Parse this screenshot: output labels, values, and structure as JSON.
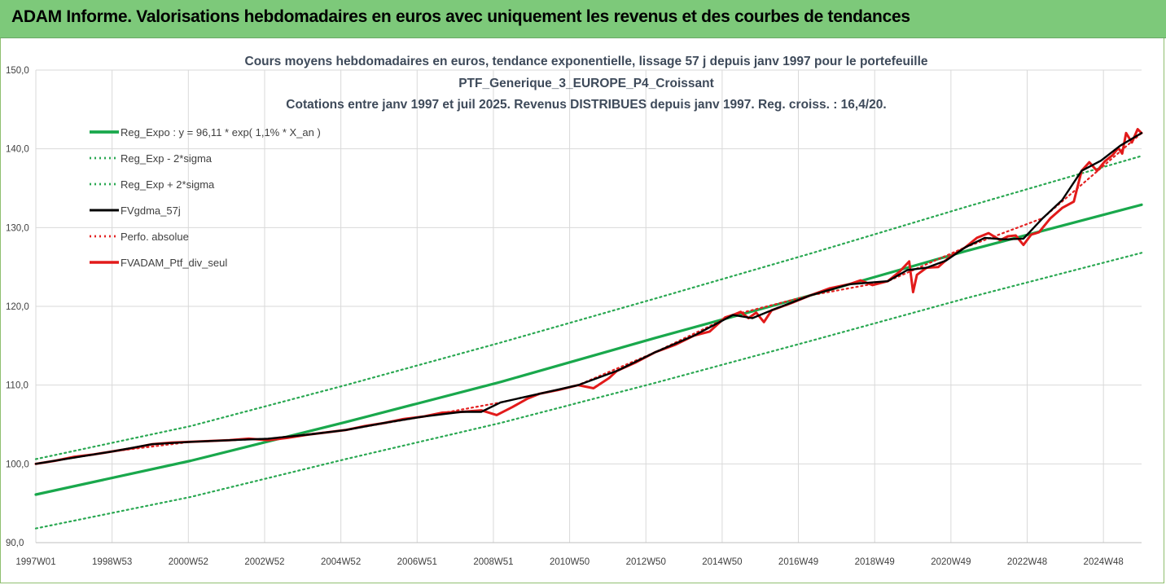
{
  "banner": {
    "title": "ADAM Informe. Valorisations hebdomadaires en euros avec uniquement les revenus et des courbes de tendances"
  },
  "colors": {
    "banner_bg": "#7dc97a",
    "trend": "#19a84c",
    "sigma": "#2aa852",
    "smooth": "#000000",
    "perf": "#e32222",
    "portfolio": "#e21a1a",
    "grid": "#d9d9d9"
  },
  "chart_data": {
    "type": "line",
    "title": [
      "Cours moyens hebdomadaires  en euros, tendance exponentielle, lissage 57 j depuis janv 1997 pour le portefeuille",
      "PTF_Generique_3_EUROPE_P4_Croissant",
      "Cotations  entre janv 1997 et juil 2025. Revenus DISTRIBUES depuis janv 1997. Reg. croiss. : 16,4/20."
    ],
    "xlabel": "",
    "ylabel": "",
    "ylim": [
      90,
      150
    ],
    "xlim": [
      1997.0,
      2025.55
    ],
    "y_ticks": [
      "90,0",
      "100,0",
      "110,0",
      "120,0",
      "130,0",
      "140,0",
      "150,0"
    ],
    "x_ticks": [
      "1997W01",
      "1998W53",
      "2000W52",
      "2002W52",
      "2004W52",
      "2006W51",
      "2008W51",
      "2010W50",
      "2012W50",
      "2014W50",
      "2016W49",
      "2018W49",
      "2020W49",
      "2022W48",
      "2024W48"
    ],
    "grid": true,
    "legend_position": "top-left",
    "series": [
      {
        "name": "Reg_Expo : y = 96,11 * exp( 1,1% *  X_an )",
        "style": "solid-thick",
        "x": [
          1997.0,
          2001.0,
          2005.0,
          2009.0,
          2013.0,
          2017.0,
          2021.0,
          2025.55
        ],
        "y": [
          96.1,
          100.4,
          105.3,
          110.4,
          116.0,
          121.4,
          127.0,
          132.9
        ]
      },
      {
        "name": "Reg_Exp - 2*sigma",
        "style": "dotted",
        "x": [
          1997.0,
          2001.0,
          2005.0,
          2009.0,
          2013.0,
          2017.0,
          2021.0,
          2025.55
        ],
        "y": [
          91.8,
          95.8,
          100.6,
          105.2,
          110.3,
          115.6,
          121.0,
          126.8
        ]
      },
      {
        "name": "Reg_Exp + 2*sigma",
        "style": "dotted",
        "x": [
          1997.0,
          2001.0,
          2005.0,
          2009.0,
          2013.0,
          2017.0,
          2021.0,
          2025.55
        ],
        "y": [
          100.6,
          104.8,
          110.0,
          115.4,
          121.0,
          126.7,
          132.6,
          139.1
        ]
      },
      {
        "name": "FVgdma_57j",
        "style": "solid",
        "x": [
          1997.0,
          1998.0,
          1999.0,
          2000.0,
          2001.0,
          2002.0,
          2003.0,
          2004.0,
          2005.0,
          2006.0,
          2007.0,
          2008.0,
          2008.5,
          2009.0,
          2010.0,
          2011.0,
          2012.0,
          2013.0,
          2014.0,
          2015.0,
          2015.5,
          2016.0,
          2017.0,
          2018.0,
          2019.0,
          2019.5,
          2020.0,
          2020.5,
          2021.0,
          2021.5,
          2022.0,
          2022.5,
          2023.0,
          2023.5,
          2024.0,
          2024.5,
          2025.0,
          2025.55
        ],
        "y": [
          100.0,
          100.8,
          101.6,
          102.5,
          102.8,
          103.0,
          103.2,
          103.7,
          104.3,
          105.2,
          106.0,
          106.6,
          106.6,
          107.8,
          108.9,
          110.0,
          111.8,
          114.2,
          116.3,
          118.9,
          118.5,
          119.5,
          121.4,
          122.8,
          123.2,
          124.6,
          124.9,
          125.8,
          127.5,
          128.7,
          128.5,
          128.6,
          131.2,
          133.5,
          137.2,
          138.5,
          140.4,
          142.0
        ]
      },
      {
        "name": "Perfo. absolue",
        "style": "dotted",
        "x": [
          1997.0,
          1999.0,
          2001.0,
          2003.0,
          2005.0,
          2007.0,
          2009.0,
          2011.0,
          2013.0,
          2015.0,
          2017.0,
          2019.0,
          2021.0,
          2023.0,
          2025.55
        ],
        "y": [
          100.0,
          101.6,
          102.8,
          103.2,
          104.3,
          106.0,
          107.8,
          110.0,
          114.2,
          118.9,
          121.4,
          123.2,
          127.5,
          131.2,
          142.0
        ]
      },
      {
        "name": "FVADAM_Ptf_div_seul",
        "style": "solid-thick",
        "x": [
          1997.0,
          1997.5,
          1998.0,
          1998.5,
          1999.0,
          1999.5,
          2000.0,
          2000.5,
          2001.0,
          2001.5,
          2002.0,
          2002.5,
          2003.0,
          2003.5,
          2004.0,
          2004.5,
          2005.0,
          2005.5,
          2006.0,
          2006.5,
          2007.0,
          2007.5,
          2008.0,
          2008.5,
          2008.9,
          2009.3,
          2009.7,
          2010.0,
          2010.5,
          2011.0,
          2011.4,
          2011.8,
          2012.0,
          2012.5,
          2013.0,
          2013.5,
          2014.0,
          2014.4,
          2014.8,
          2015.0,
          2015.2,
          2015.4,
          2015.6,
          2015.8,
          2016.0,
          2016.5,
          2017.0,
          2017.5,
          2018.0,
          2018.3,
          2018.6,
          2019.0,
          2019.3,
          2019.55,
          2019.65,
          2019.75,
          2020.0,
          2020.3,
          2020.6,
          2021.0,
          2021.3,
          2021.6,
          2021.9,
          2022.1,
          2022.3,
          2022.5,
          2022.7,
          2022.9,
          2023.2,
          2023.5,
          2023.8,
          2024.0,
          2024.2,
          2024.4,
          2024.6,
          2024.8,
          2024.95,
          2025.05,
          2025.15,
          2025.3,
          2025.45,
          2025.55
        ],
        "y": [
          100.0,
          100.4,
          100.9,
          101.2,
          101.6,
          102.0,
          102.5,
          102.7,
          102.8,
          102.9,
          103.0,
          103.2,
          103.0,
          103.3,
          103.7,
          104.0,
          104.3,
          104.8,
          105.2,
          105.7,
          106.0,
          106.5,
          106.6,
          106.8,
          106.2,
          107.2,
          108.3,
          108.9,
          109.4,
          110.0,
          109.6,
          110.9,
          111.8,
          112.9,
          114.2,
          115.1,
          116.3,
          116.8,
          118.6,
          118.9,
          119.3,
          118.5,
          119.2,
          118.0,
          119.5,
          120.4,
          121.4,
          122.3,
          122.8,
          123.3,
          122.7,
          123.2,
          124.4,
          125.7,
          121.8,
          124.0,
          124.9,
          125.0,
          126.3,
          127.5,
          128.7,
          129.3,
          128.4,
          128.9,
          129.0,
          127.8,
          129.1,
          129.4,
          131.2,
          132.5,
          133.3,
          137.2,
          138.3,
          137.2,
          138.4,
          139.2,
          140.1,
          139.4,
          142.0,
          140.8,
          142.5,
          142.0
        ]
      }
    ]
  }
}
